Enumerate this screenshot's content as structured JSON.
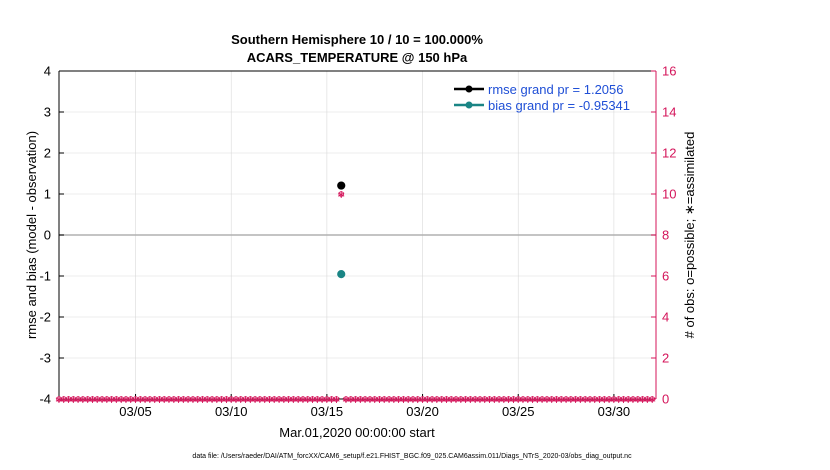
{
  "chart_data": {
    "type": "scatter",
    "title_line1": "Southern Hemisphere 10 / 10 = 100.000%",
    "title_line2": "ACARS_TEMPERATURE @ 150 hPa",
    "xlabel": "Mar.01,2020 00:00:00 start",
    "ylabel_left": "rmse and bias (model - observation)",
    "ylabel_right": "# of obs: o=possible; ∗=assimilated",
    "x_ticks": [
      {
        "day": 5,
        "label": "03/05"
      },
      {
        "day": 10,
        "label": "03/10"
      },
      {
        "day": 15,
        "label": "03/15"
      },
      {
        "day": 20,
        "label": "03/20"
      },
      {
        "day": 25,
        "label": "03/25"
      },
      {
        "day": 30,
        "label": "03/30"
      }
    ],
    "xlim": [
      1,
      32.2
    ],
    "ylim_left": [
      -4,
      4
    ],
    "yticks_left": [
      "-4",
      "-3",
      "-2",
      "-1",
      "0",
      "1",
      "2",
      "3",
      "4"
    ],
    "ylim_right": [
      0,
      16
    ],
    "yticks_right": [
      "0",
      "2",
      "4",
      "6",
      "8",
      "10",
      "12",
      "14",
      "16"
    ],
    "grid": true,
    "legend_position": "top-right",
    "series": [
      {
        "name": "rmse grand pr = 1.2056",
        "color": "#000000",
        "axis": "left",
        "points": [
          {
            "x": 15.75,
            "y": 1.2056
          }
        ]
      },
      {
        "name": "bias grand pr = -0.95341",
        "color": "#1a8585",
        "axis": "left",
        "points": [
          {
            "x": 15.75,
            "y": -0.95341
          }
        ]
      }
    ],
    "obs_counts": {
      "color": "#d4145a",
      "axis": "right",
      "possible_at_obs": 10,
      "assimilated_at_obs": 10,
      "obs_time": 15.75,
      "other_times_count": 0,
      "time_step_days": 0.25
    },
    "zero_line_color": "#b0b0b0",
    "axis_right_color": "#d4145a",
    "legend_text_color": "#1f4fd6"
  },
  "footer": "data file: /Users/raeder/DAI/ATM_forcXX/CAM6_setup/f.e21.FHIST_BGC.f09_025.CAM6assim.011/Diags_NTrS_2020-03/obs_diag_output.nc"
}
